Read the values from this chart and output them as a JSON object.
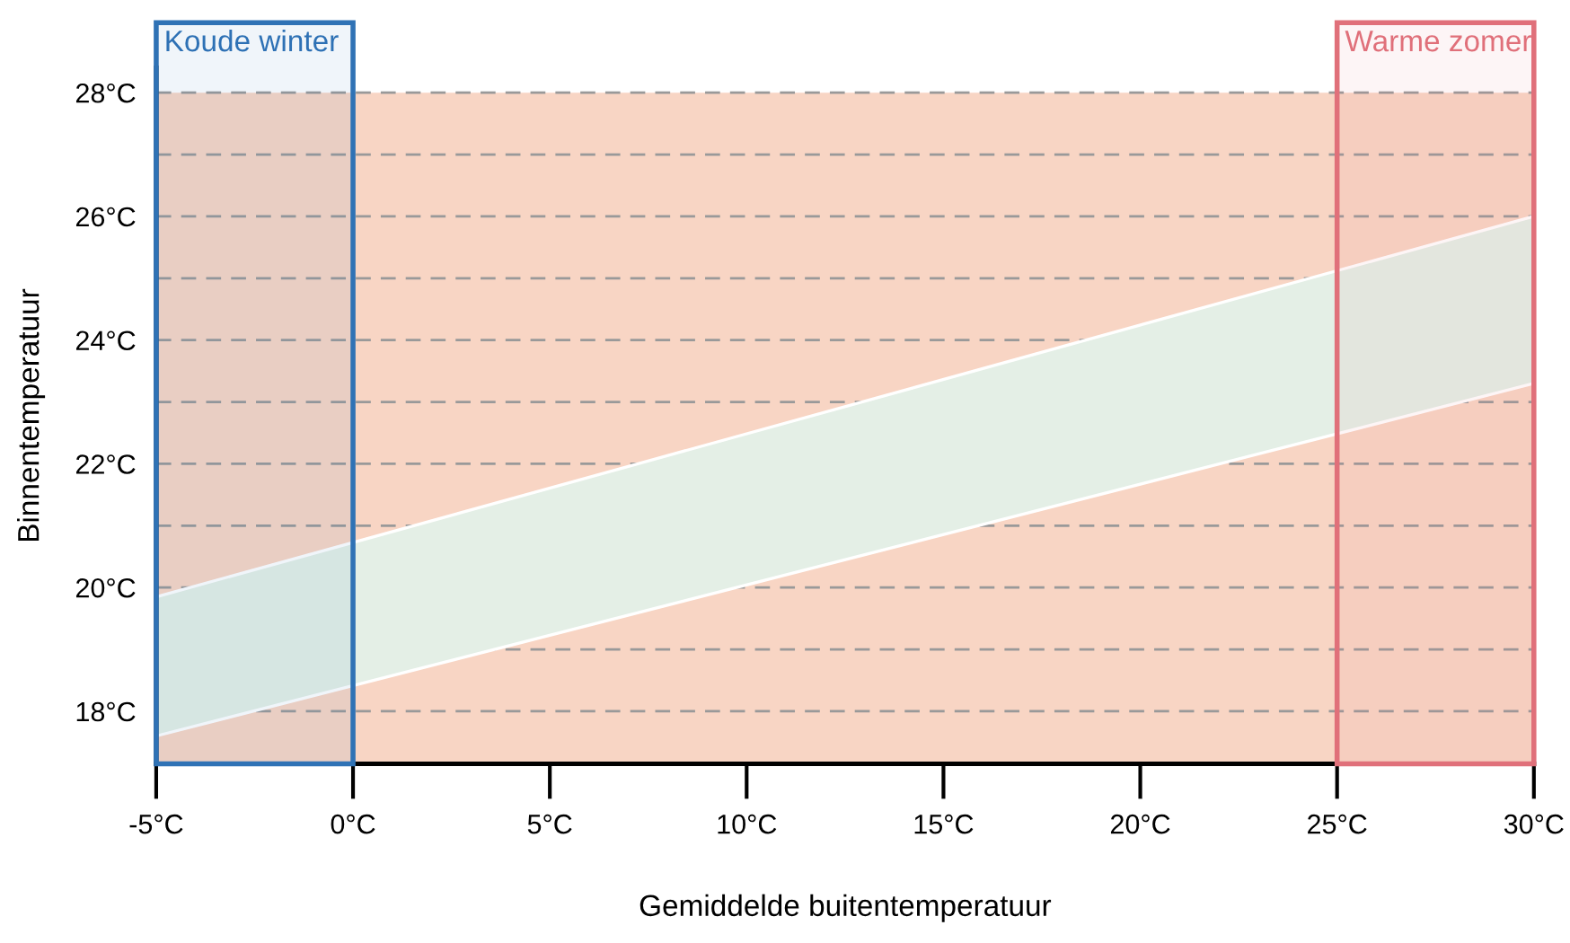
{
  "chart_data": {
    "type": "area",
    "xlabel": "Gemiddelde buitentemperatuur",
    "ylabel": "Binnentemperatuur",
    "series": [
      {
        "x": [
          -5,
          30
        ],
        "values": [
          null,
          null
        ],
        "lower": [
          17.6,
          23.3
        ],
        "upper": [
          19.85,
          26.0
        ],
        "color": "#e4efe6"
      }
    ],
    "xlim": [
      -5,
      30
    ],
    "ylim": [
      17.15,
      28.4
    ],
    "xticks": [
      {
        "value": -5,
        "label": "-5°C"
      },
      {
        "value": 0,
        "label": "0°C"
      },
      {
        "value": 5,
        "label": "5°C"
      },
      {
        "value": 10,
        "label": "10°C"
      },
      {
        "value": 15,
        "label": "15°C"
      },
      {
        "value": 20,
        "label": "20°C"
      },
      {
        "value": 25,
        "label": "25°C"
      },
      {
        "value": 30,
        "label": "30°C"
      }
    ],
    "yticks": [
      {
        "value": 18,
        "label": "18°C"
      },
      {
        "value": 19,
        "label": null
      },
      {
        "value": 20,
        "label": "20°C"
      },
      {
        "value": 21,
        "label": null
      },
      {
        "value": 22,
        "label": "22°C"
      },
      {
        "value": 23,
        "label": null
      },
      {
        "value": 24,
        "label": "24°C"
      },
      {
        "value": 25,
        "label": null
      },
      {
        "value": 26,
        "label": "26°C"
      },
      {
        "value": 27,
        "label": null
      },
      {
        "value": 28,
        "label": "28°C"
      }
    ],
    "grid": "y",
    "bands": [
      {
        "axis": "y",
        "from": 17.15,
        "to": 28,
        "color": "#f8d5c4"
      },
      {
        "axis": "x",
        "from": -5,
        "to": 0,
        "label": "Koude winter",
        "color": "#2f72b5"
      },
      {
        "axis": "x",
        "from": 25,
        "to": 30,
        "label": "Warme zomer",
        "color": "#e0707a"
      }
    ]
  }
}
